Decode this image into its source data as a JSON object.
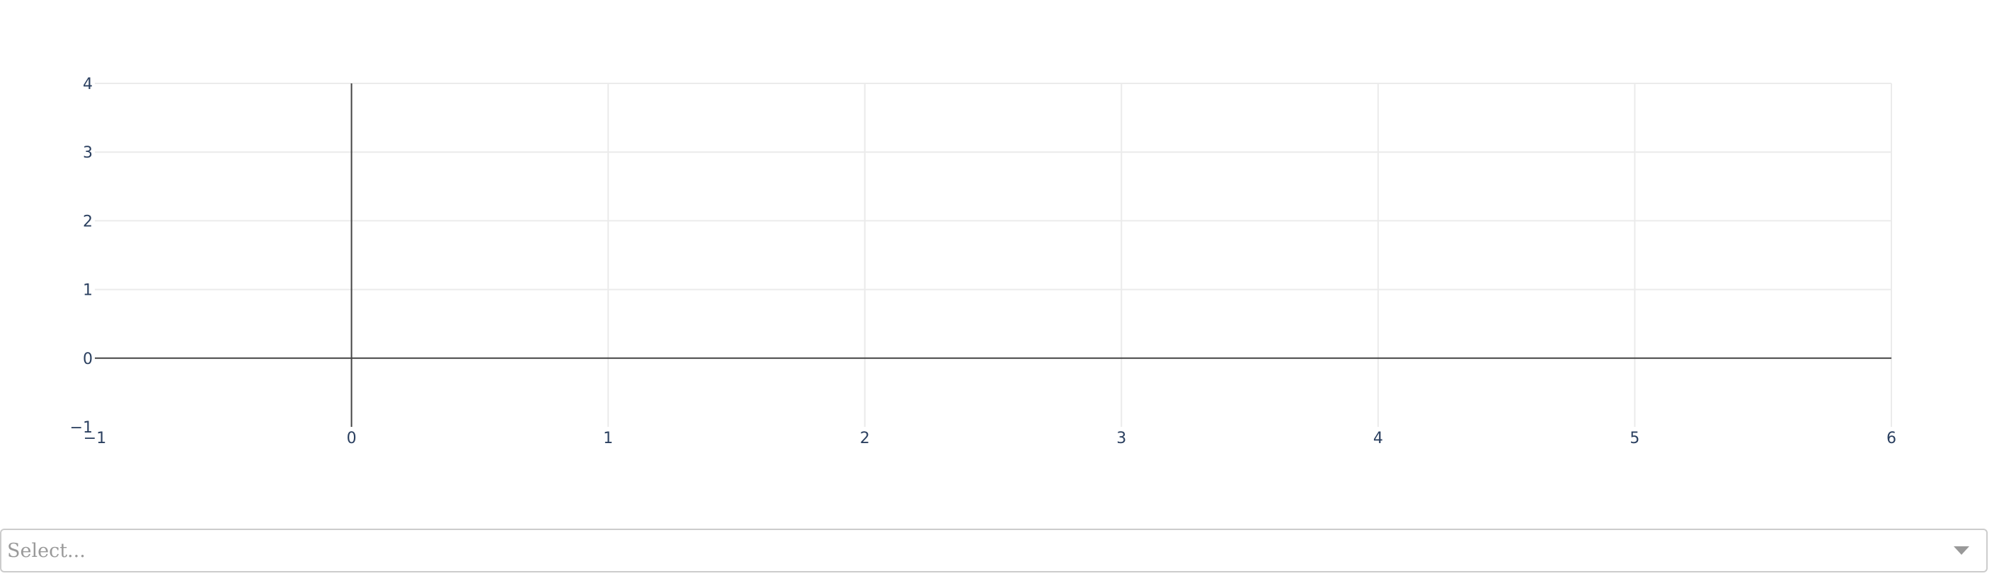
{
  "chart_data": {
    "type": "scatter",
    "title": "",
    "xlabel": "",
    "ylabel": "",
    "xlim": [
      -1,
      6
    ],
    "ylim": [
      -1,
      4
    ],
    "x_ticks": [
      -1,
      0,
      1,
      2,
      3,
      4,
      5,
      6
    ],
    "y_ticks": [
      -1,
      0,
      1,
      2,
      3,
      4
    ],
    "x_tick_labels": [
      "−1",
      "0",
      "1",
      "2",
      "3",
      "4",
      "5",
      "6"
    ],
    "y_tick_labels": [
      "−1",
      "0",
      "1",
      "2",
      "3",
      "4"
    ],
    "grid": true,
    "zero_lines": true,
    "series": []
  },
  "dropdown": {
    "placeholder": "Select..."
  },
  "colors": {
    "grid": "#ebebeb",
    "zeroline": "#444444",
    "tick_text": "#2a3f5f"
  }
}
